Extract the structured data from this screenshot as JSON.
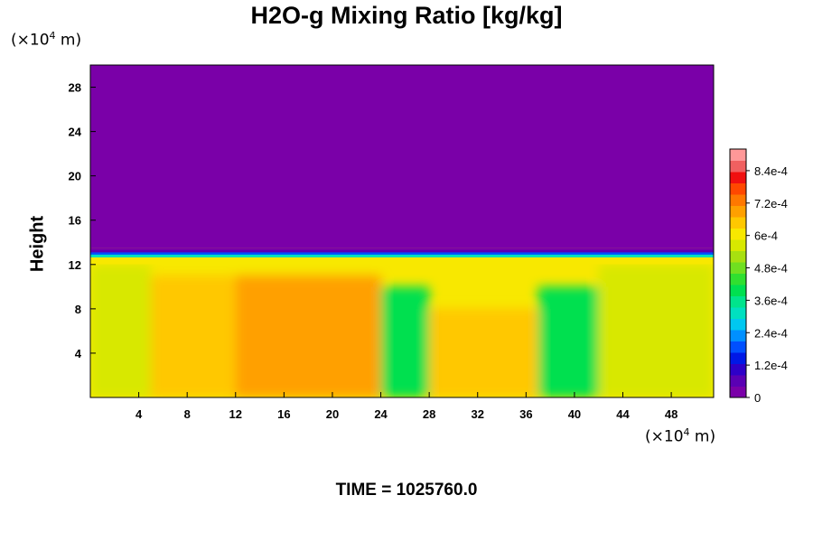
{
  "chart_data": {
    "type": "heatmap",
    "title": "H2O-g Mixing Ratio [kg/kg]",
    "xlabel": "",
    "ylabel": "Height",
    "x_unit_prefix": "(×10",
    "x_unit_exp": "4",
    "x_unit_suffix": " m)",
    "y_unit_prefix": "(×10",
    "y_unit_exp": "4",
    "y_unit_suffix": " m)",
    "xlim": [
      0,
      51.5
    ],
    "ylim": [
      0,
      30
    ],
    "x_ticks": [
      4,
      8,
      12,
      16,
      20,
      24,
      28,
      32,
      36,
      40,
      44,
      48
    ],
    "y_ticks": [
      4,
      8,
      12,
      16,
      20,
      24,
      28
    ],
    "colorbar": {
      "min": 0,
      "max": 0.00092,
      "tick_values": [
        0,
        0.00012,
        0.00024,
        0.00036,
        0.00048,
        0.0006,
        0.00072,
        0.00084
      ],
      "tick_labels": [
        "0",
        "1.2e-4",
        "2.4e-4",
        "3.6e-4",
        "4.8e-4",
        "6e-4",
        "7.2e-4",
        "8.4e-4"
      ],
      "colors": [
        "#7a00a8",
        "#5a00b4",
        "#2e00c8",
        "#0018e6",
        "#0050ff",
        "#0090ff",
        "#00c8f0",
        "#00e0c0",
        "#00e48c",
        "#00e050",
        "#30e030",
        "#70e020",
        "#a8e010",
        "#d8e800",
        "#f8e800",
        "#ffc800",
        "#ffa000",
        "#ff7800",
        "#ff4800",
        "#f01010",
        "#f06060",
        "#ff9898"
      ]
    },
    "field": {
      "description_free": true,
      "moist_layer_top_y": 13.5,
      "upper_value": 0,
      "regions": [
        {
          "x": [
            0,
            5
          ],
          "y": [
            0,
            12
          ],
          "value": 0.00058
        },
        {
          "x": [
            5,
            12
          ],
          "y": [
            0,
            11
          ],
          "value": 0.00066
        },
        {
          "x": [
            12,
            24
          ],
          "y": [
            0,
            11
          ],
          "value": 0.0007
        },
        {
          "x": [
            24,
            28
          ],
          "y": [
            0,
            10
          ],
          "value": 0.0004
        },
        {
          "x": [
            28,
            37
          ],
          "y": [
            0,
            8
          ],
          "value": 0.00064
        },
        {
          "x": [
            37,
            42
          ],
          "y": [
            0,
            10
          ],
          "value": 0.00038
        },
        {
          "x": [
            42,
            51.5
          ],
          "y": [
            0,
            12
          ],
          "value": 0.00056
        }
      ]
    }
  },
  "footer": {
    "time_label": "TIME = 1025760.0"
  }
}
